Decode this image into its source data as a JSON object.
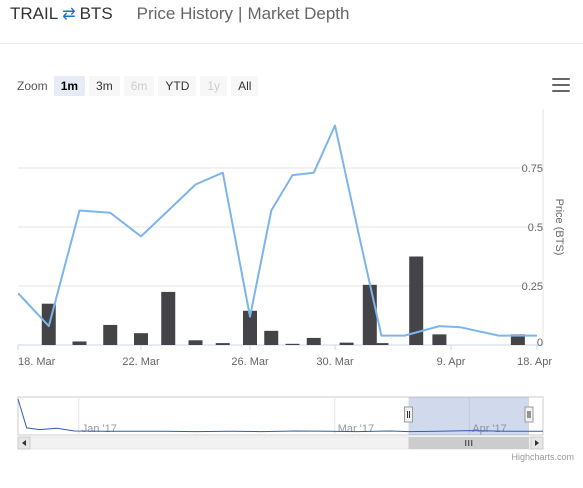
{
  "header": {
    "pair_left": "TRAIL",
    "pair_icon": "swap-arrows-icon",
    "pair_right": "BTS",
    "tabs": [
      "Price History",
      "Market Depth"
    ],
    "tab_separator": "|"
  },
  "range_selector": {
    "label": "Zoom",
    "buttons": [
      {
        "label": "1m",
        "state": "active"
      },
      {
        "label": "3m",
        "state": "normal"
      },
      {
        "label": "6m",
        "state": "disabled"
      },
      {
        "label": "YTD",
        "state": "normal"
      },
      {
        "label": "1y",
        "state": "disabled"
      },
      {
        "label": "All",
        "state": "normal"
      }
    ]
  },
  "export_menu_icon": "hamburger-menu-icon",
  "credit": "Highcharts.com",
  "chart_data": {
    "type": "line",
    "xlabel": "",
    "ylabel": "Price (BTS)",
    "ylim": [
      0,
      1.0
    ],
    "y_ticks": [
      0.25,
      0.5,
      0.75
    ],
    "x_ticks": [
      "18. Mar",
      "22. Mar",
      "26. Mar",
      "30. Mar",
      "9. Apr",
      "18. Apr"
    ],
    "grid": true,
    "series": [
      {
        "name": "",
        "type": "line",
        "color": "#7cb5ec",
        "points": [
          {
            "x": "2017-03-18",
            "y": 0.22
          },
          {
            "x": "2017-03-19",
            "y": 0.08
          },
          {
            "x": "2017-03-20",
            "y": 0.57
          },
          {
            "x": "2017-03-21",
            "y": 0.56
          },
          {
            "x": "2017-03-22",
            "y": 0.46
          },
          {
            "x": "2017-03-23",
            "y": 0.57
          },
          {
            "x": "2017-03-24",
            "y": 0.68
          },
          {
            "x": "2017-03-25",
            "y": 0.73
          },
          {
            "x": "2017-03-26",
            "y": 0.12
          },
          {
            "x": "2017-03-27",
            "y": 0.57
          },
          {
            "x": "2017-03-28",
            "y": 0.72
          },
          {
            "x": "2017-03-29",
            "y": 0.73
          },
          {
            "x": "2017-03-30",
            "y": 0.93
          },
          {
            "x": "2017-04-01",
            "y": 0.48
          },
          {
            "x": "2017-04-03",
            "y": 0.04
          },
          {
            "x": "2017-04-05",
            "y": 0.04
          },
          {
            "x": "2017-04-08",
            "y": 0.08
          },
          {
            "x": "2017-04-10",
            "y": 0.075
          },
          {
            "x": "2017-04-14",
            "y": 0.04
          },
          {
            "x": "2017-04-18",
            "y": 0.04
          }
        ]
      },
      {
        "name": "",
        "type": "bar",
        "color": "#434348",
        "points": [
          {
            "x": "2017-03-19",
            "y": 0.175
          },
          {
            "x": "2017-03-20",
            "y": 0.015
          },
          {
            "x": "2017-03-21",
            "y": 0.085
          },
          {
            "x": "2017-03-22",
            "y": 0.05
          },
          {
            "x": "2017-03-23",
            "y": 0.225
          },
          {
            "x": "2017-03-24",
            "y": 0.02
          },
          {
            "x": "2017-03-25",
            "y": 0.008
          },
          {
            "x": "2017-03-26",
            "y": 0.145
          },
          {
            "x": "2017-03-27",
            "y": 0.06
          },
          {
            "x": "2017-03-28",
            "y": 0.005
          },
          {
            "x": "2017-03-29",
            "y": 0.03
          },
          {
            "x": "2017-03-31",
            "y": 0.01
          },
          {
            "x": "2017-04-02",
            "y": 0.255
          },
          {
            "x": "2017-04-03",
            "y": 0.008
          },
          {
            "x": "2017-04-06",
            "y": 0.375
          },
          {
            "x": "2017-04-08",
            "y": 0.045
          },
          {
            "x": "2017-04-16",
            "y": 0.045
          }
        ]
      }
    ]
  },
  "navigator": {
    "x_ticks": [
      "Jan '17",
      "Mar '17",
      "Apr '17"
    ],
    "handle_icon": "navigator-handle-icon",
    "scroll_left_icon": "scroll-left-arrow-icon",
    "scroll_right_icon": "scroll-right-arrow-icon",
    "scroll_grip_icon": "scrollbar-grip-icon",
    "series": [
      {
        "x": "2016-12-18",
        "y": 1.0
      },
      {
        "x": "2016-12-20",
        "y": 0.15
      },
      {
        "x": "2016-12-23",
        "y": 0.1
      },
      {
        "x": "2016-12-27",
        "y": 0.14
      },
      {
        "x": "2016-12-31",
        "y": 0.06
      },
      {
        "x": "2017-01-07",
        "y": 0.05
      },
      {
        "x": "2017-01-14",
        "y": 0.05
      },
      {
        "x": "2017-01-21",
        "y": 0.05
      },
      {
        "x": "2017-01-28",
        "y": 0.04
      },
      {
        "x": "2017-02-05",
        "y": 0.05
      },
      {
        "x": "2017-02-12",
        "y": 0.04
      },
      {
        "x": "2017-02-20",
        "y": 0.06
      },
      {
        "x": "2017-02-28",
        "y": 0.05
      },
      {
        "x": "2017-03-06",
        "y": 0.04
      },
      {
        "x": "2017-03-14",
        "y": 0.06
      },
      {
        "x": "2017-03-18",
        "y": 0.04
      },
      {
        "x": "2017-03-25",
        "y": 0.05
      },
      {
        "x": "2017-04-01",
        "y": 0.07
      },
      {
        "x": "2017-04-10",
        "y": 0.05
      },
      {
        "x": "2017-04-18",
        "y": 0.05
      }
    ]
  }
}
